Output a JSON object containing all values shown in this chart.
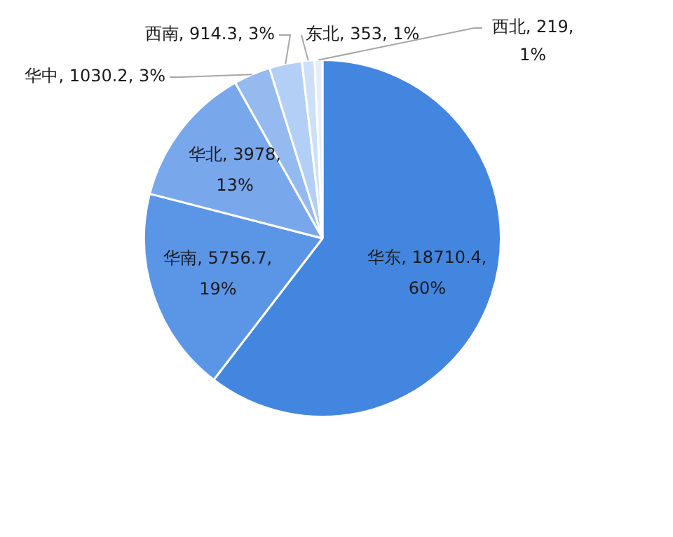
{
  "chart_data": {
    "type": "pie",
    "categories": [
      "华东",
      "华南",
      "华北",
      "华中",
      "西南",
      "东北",
      "西北"
    ],
    "values": [
      18710.4,
      5756.7,
      3978,
      1030.2,
      914.3,
      353,
      219
    ],
    "colors": [
      "#4386e0",
      "#5b95e6",
      "#78a7ec",
      "#94baf0",
      "#b3cff5",
      "#cde0f8",
      "#e4eefb"
    ],
    "value_labels": [
      "18710.4, 60%",
      "5756.7, 19%",
      "3978, 13%",
      "1030.2, 3%",
      "914.3, 3%",
      "353, 1%",
      "219, 1%"
    ],
    "legend": false
  }
}
